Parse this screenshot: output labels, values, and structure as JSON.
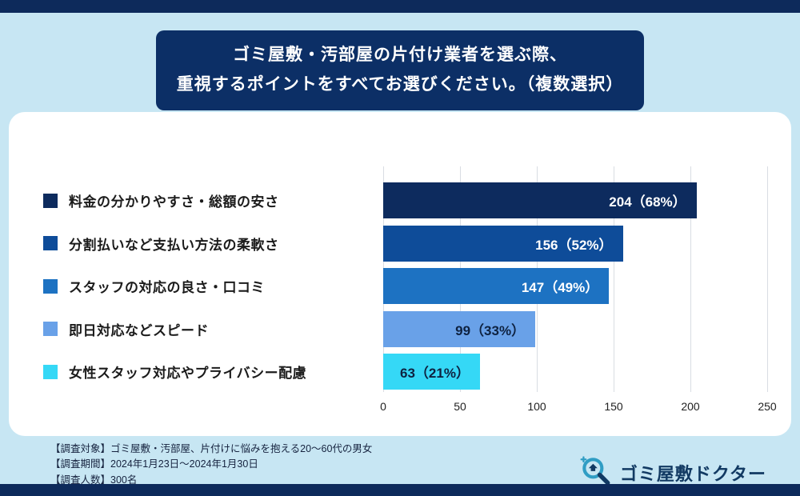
{
  "header": {
    "title_line1": "ゴミ屋敷・汚部屋の片付け業者を選ぶ際、",
    "title_line2": "重視するポイントをすべてお選びください。（複数選択）"
  },
  "chart_data": {
    "type": "bar",
    "orientation": "horizontal",
    "title": "ゴミ屋敷・汚部屋の片付け業者を選ぶ際、重視するポイントをすべてお選びください。（複数選択）",
    "categories": [
      "料金の分かりやすさ・総額の安さ",
      "分割払いなど支払い方法の柔軟さ",
      "スタッフの対応の良さ・口コミ",
      "即日対応などスピード",
      "女性スタッフ対応やプライバシー配慮"
    ],
    "values": [
      204,
      156,
      147,
      99,
      63
    ],
    "percentages": [
      68,
      52,
      49,
      33,
      21
    ],
    "value_labels": [
      "204（68%）",
      "156（52%）",
      "147（49%）",
      "99（33%）",
      "63（21%）"
    ],
    "colors": [
      "#0d2b5e",
      "#0e4c99",
      "#1d72c2",
      "#69a1e8",
      "#35d8f6"
    ],
    "value_text_colors": [
      "#ffffff",
      "#ffffff",
      "#ffffff",
      "#0e2240",
      "#0e2240"
    ],
    "xlim": [
      0,
      250
    ],
    "xticks": [
      0,
      50,
      100,
      150,
      200,
      250
    ],
    "grid": true,
    "legend_position": "left-of-bars"
  },
  "footer": {
    "line1": "【調査対象】ゴミ屋敷・汚部屋、片付けに悩みを抱える20〜60代の男女",
    "line2": "【調査期間】2024年1月23日〜2024年1月30日",
    "line3": "【調査人数】300名"
  },
  "logo": {
    "text": "ゴミ屋敷ドクター"
  }
}
